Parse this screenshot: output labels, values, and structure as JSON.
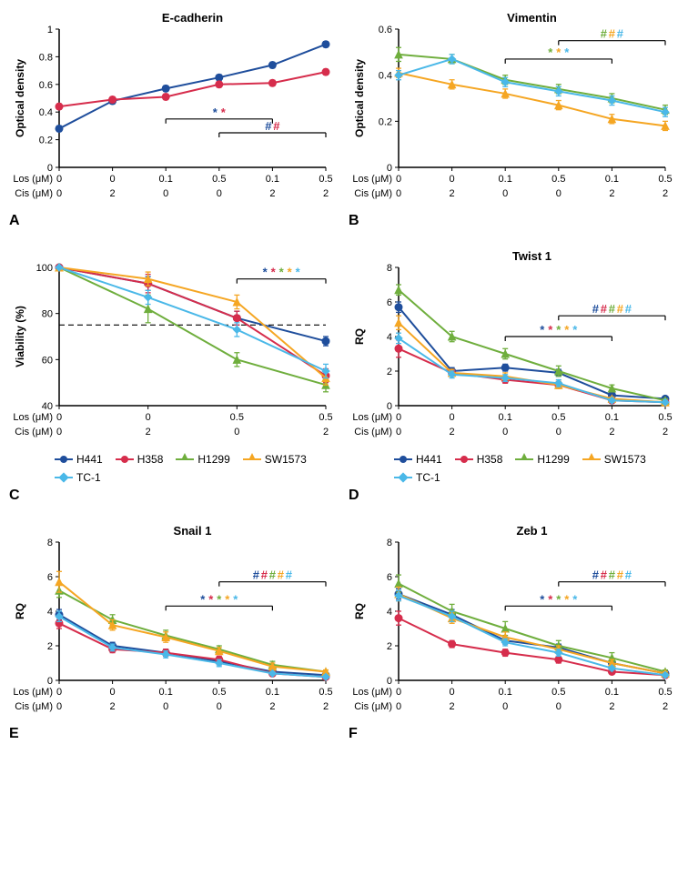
{
  "colors": {
    "H441": "#1f4e9c",
    "H358": "#d62d4c",
    "H1299": "#6fae3d",
    "SW1573": "#f5a623",
    "TC1": "#4ab8e8",
    "axis": "#000000",
    "bg": "#ffffff"
  },
  "cellLines": [
    "H441",
    "H358",
    "H1299",
    "SW1573",
    "TC-1"
  ],
  "markers": {
    "H441": "circle",
    "H358": "circle",
    "H1299": "triangle",
    "SW1573": "triangle",
    "TC-1": "diamond"
  },
  "xCategories6": [
    "0",
    "0",
    "0.1",
    "0.5",
    "0.1",
    "0.5"
  ],
  "xCis6": [
    "0",
    "2",
    "0",
    "0",
    "2",
    "2"
  ],
  "xCategories4": [
    "0",
    "0",
    "0.5",
    "0.5"
  ],
  "xCis4": [
    "0",
    "2",
    "0",
    "2"
  ],
  "panels": {
    "A": {
      "title": "E-cadherin",
      "ylabel": "Optical density",
      "ylim": [
        0,
        1.0
      ],
      "ytick": 0.2,
      "series": {
        "H441": [
          0.28,
          0.48,
          0.57,
          0.65,
          0.74,
          0.89
        ],
        "H358": [
          0.44,
          0.49,
          0.51,
          0.6,
          0.61,
          0.69
        ]
      },
      "err": {
        "H441": [
          0.02,
          0.02,
          0.02,
          0.02,
          0.02,
          0.02
        ],
        "H358": [
          0.02,
          0.02,
          0.02,
          0.02,
          0.02,
          0.02
        ]
      },
      "sig": [
        {
          "type": "stars",
          "from": 2,
          "to": 4,
          "y": 0.35,
          "colors": [
            "H441",
            "H358"
          ]
        },
        {
          "type": "hashes",
          "from": 3,
          "to": 5,
          "y": 0.25,
          "colors": [
            "H441",
            "H358"
          ]
        }
      ]
    },
    "B": {
      "title": "Vimentin",
      "ylabel": "Optical density",
      "ylim": [
        0,
        0.6
      ],
      "ytick": 0.2,
      "series": {
        "H1299": [
          0.49,
          0.47,
          0.38,
          0.34,
          0.3,
          0.25
        ],
        "SW1573": [
          0.41,
          0.36,
          0.32,
          0.27,
          0.21,
          0.18
        ],
        "TC-1": [
          0.4,
          0.47,
          0.37,
          0.33,
          0.29,
          0.24
        ]
      },
      "err": {
        "H1299": [
          0.03,
          0.02,
          0.02,
          0.02,
          0.02,
          0.02
        ],
        "SW1573": [
          0.02,
          0.02,
          0.02,
          0.02,
          0.02,
          0.02
        ],
        "TC-1": [
          0.02,
          0.02,
          0.02,
          0.02,
          0.02,
          0.02
        ]
      },
      "sig": [
        {
          "type": "hashes",
          "from": 3,
          "to": 5,
          "y": 0.55,
          "colors": [
            "H1299",
            "SW1573",
            "TC-1"
          ]
        },
        {
          "type": "stars",
          "from": 2,
          "to": 4,
          "y": 0.47,
          "colors": [
            "H1299",
            "SW1573",
            "TC-1"
          ]
        }
      ]
    },
    "C": {
      "title": "",
      "ylabel": "Viability (%)",
      "ylim": [
        40,
        100
      ],
      "ytick": 20,
      "x": 4,
      "dashed": 75,
      "series": {
        "H441": [
          100,
          93,
          78,
          68
        ],
        "H358": [
          100,
          93,
          78,
          53
        ],
        "H1299": [
          100,
          82,
          60,
          49
        ],
        "SW1573": [
          100,
          95,
          85,
          52
        ],
        "TC-1": [
          100,
          87,
          73,
          55
        ]
      },
      "err": {
        "H441": [
          0,
          3,
          3,
          2
        ],
        "H358": [
          0,
          4,
          3,
          3
        ],
        "H1299": [
          0,
          6,
          3,
          3
        ],
        "SW1573": [
          0,
          3,
          3,
          3
        ],
        "TC-1": [
          0,
          3,
          3,
          3
        ]
      },
      "sig": [
        {
          "type": "stars",
          "from": 2,
          "to": 3,
          "y": 95,
          "colors": [
            "H441",
            "H358",
            "H1299",
            "SW1573",
            "TC-1"
          ]
        }
      ]
    },
    "D": {
      "title": "Twist 1",
      "ylabel": "RQ",
      "ylim": [
        0,
        8
      ],
      "ytick": 2,
      "series": {
        "H441": [
          5.7,
          2.0,
          2.2,
          1.9,
          0.6,
          0.4
        ],
        "H358": [
          3.3,
          1.9,
          1.5,
          1.2,
          0.3,
          0.2
        ],
        "H1299": [
          6.7,
          4.0,
          3.0,
          2.0,
          1.0,
          0.3
        ],
        "SW1573": [
          4.8,
          1.9,
          1.7,
          1.2,
          0.4,
          0.2
        ],
        "TC-1": [
          3.9,
          1.8,
          1.6,
          1.3,
          0.3,
          0.2
        ]
      },
      "err": {
        "H441": [
          0.3,
          0.2,
          0.2,
          0.2,
          0.1,
          0.1
        ],
        "H358": [
          0.5,
          0.2,
          0.2,
          0.2,
          0.1,
          0.1
        ],
        "H1299": [
          0.3,
          0.3,
          0.3,
          0.3,
          0.2,
          0.1
        ],
        "SW1573": [
          0.4,
          0.2,
          0.2,
          0.2,
          0.1,
          0.1
        ],
        "TC-1": [
          0.3,
          0.2,
          0.2,
          0.2,
          0.1,
          0.1
        ]
      },
      "sig": [
        {
          "type": "hashes",
          "from": 3,
          "to": 5,
          "y": 5.2,
          "colors": [
            "H441",
            "H358",
            "H1299",
            "SW1573",
            "TC-1"
          ]
        },
        {
          "type": "stars",
          "from": 2,
          "to": 4,
          "y": 4.0,
          "colors": [
            "H441",
            "H358",
            "H1299",
            "SW1573",
            "TC-1"
          ]
        }
      ]
    },
    "E": {
      "title": "Snail 1",
      "ylabel": "RQ",
      "ylim": [
        0,
        8
      ],
      "ytick": 2,
      "series": {
        "H441": [
          3.8,
          2.0,
          1.6,
          1.1,
          0.5,
          0.3
        ],
        "H358": [
          3.3,
          1.8,
          1.6,
          1.2,
          0.4,
          0.2
        ],
        "H1299": [
          5.2,
          3.5,
          2.6,
          1.8,
          0.9,
          0.5
        ],
        "SW1573": [
          5.7,
          3.2,
          2.5,
          1.7,
          0.8,
          0.5
        ],
        "TC-1": [
          3.7,
          1.9,
          1.5,
          1.0,
          0.4,
          0.2
        ]
      },
      "err": {
        "H441": [
          0.3,
          0.2,
          0.2,
          0.2,
          0.1,
          0.1
        ],
        "H358": [
          0.3,
          0.2,
          0.2,
          0.2,
          0.1,
          0.1
        ],
        "H1299": [
          0.4,
          0.3,
          0.3,
          0.2,
          0.2,
          0.1
        ],
        "SW1573": [
          0.6,
          0.3,
          0.3,
          0.2,
          0.2,
          0.1
        ],
        "TC-1": [
          0.3,
          0.2,
          0.2,
          0.2,
          0.1,
          0.1
        ]
      },
      "sig": [
        {
          "type": "hashes",
          "from": 3,
          "to": 5,
          "y": 5.7,
          "colors": [
            "H441",
            "H358",
            "H1299",
            "SW1573",
            "TC-1"
          ]
        },
        {
          "type": "stars",
          "from": 2,
          "to": 4,
          "y": 4.3,
          "colors": [
            "H441",
            "H358",
            "H1299",
            "SW1573",
            "TC-1"
          ]
        }
      ]
    },
    "F": {
      "title": "Zeb 1",
      "ylabel": "RQ",
      "ylim": [
        0,
        8
      ],
      "ytick": 2,
      "series": {
        "H441": [
          5.0,
          3.8,
          2.3,
          1.9,
          1.0,
          0.4
        ],
        "H358": [
          3.6,
          2.1,
          1.6,
          1.2,
          0.5,
          0.3
        ],
        "H1299": [
          5.6,
          4.0,
          3.0,
          2.0,
          1.3,
          0.5
        ],
        "SW1573": [
          5.0,
          3.6,
          2.5,
          1.8,
          1.0,
          0.4
        ],
        "TC-1": [
          4.9,
          3.7,
          2.2,
          1.6,
          0.7,
          0.3
        ]
      },
      "err": {
        "H441": [
          0.3,
          0.3,
          0.2,
          0.2,
          0.2,
          0.1
        ],
        "H358": [
          0.4,
          0.2,
          0.2,
          0.2,
          0.1,
          0.1
        ],
        "H1299": [
          0.5,
          0.4,
          0.4,
          0.3,
          0.3,
          0.1
        ],
        "SW1573": [
          0.4,
          0.3,
          0.3,
          0.2,
          0.2,
          0.1
        ],
        "TC-1": [
          0.3,
          0.3,
          0.2,
          0.2,
          0.1,
          0.1
        ]
      },
      "sig": [
        {
          "type": "hashes",
          "from": 3,
          "to": 5,
          "y": 5.7,
          "colors": [
            "H441",
            "H358",
            "H1299",
            "SW1573",
            "TC-1"
          ]
        },
        {
          "type": "stars",
          "from": 2,
          "to": 4,
          "y": 4.3,
          "colors": [
            "H441",
            "H358",
            "H1299",
            "SW1573",
            "TC-1"
          ]
        }
      ]
    }
  },
  "fontsize": {
    "title": 13,
    "axis": 12,
    "tick": 11,
    "label": 11
  },
  "xAxisLabels": {
    "los": "Los (μM)",
    "cis": "Cis (μM)"
  }
}
